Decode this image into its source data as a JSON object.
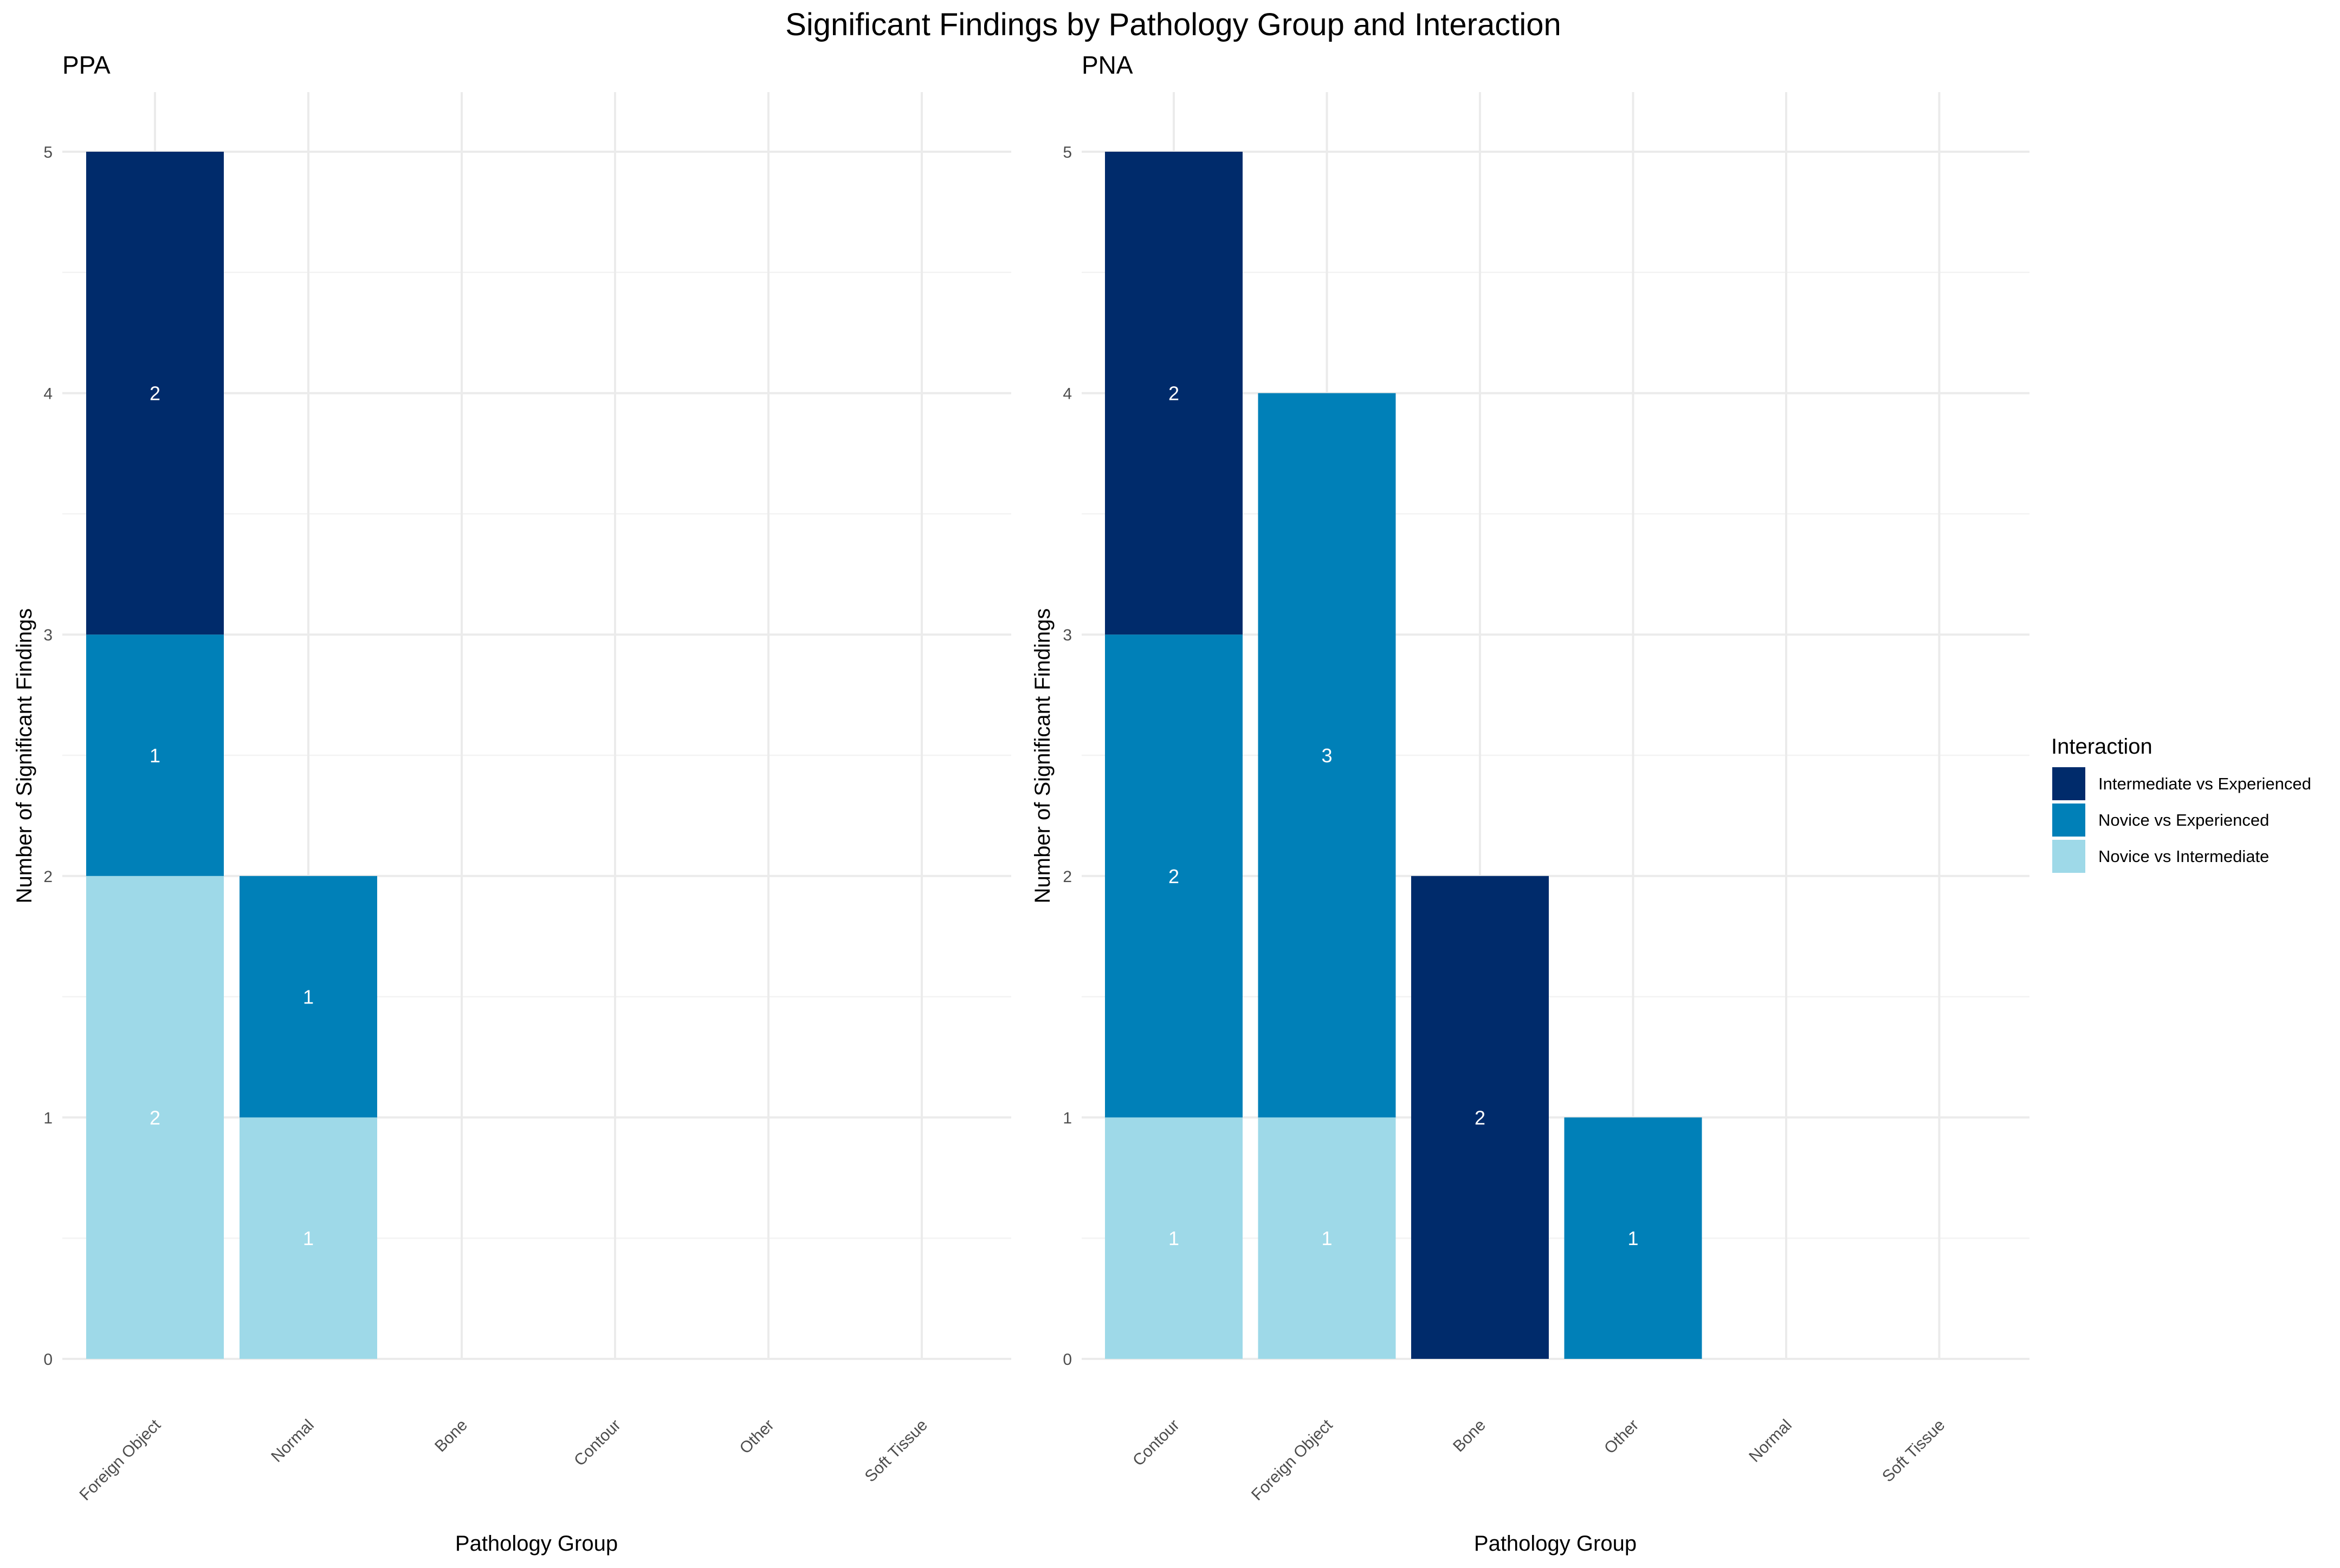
{
  "chart_data": {
    "type": "bar",
    "stacked": true,
    "title": "Significant Findings by Pathology Group and Interaction",
    "legend": {
      "title": "Interaction",
      "position": "right",
      "entries": [
        {
          "name": "Intermediate vs Experienced",
          "color": "#002b6b"
        },
        {
          "name": "Novice vs Experienced",
          "color": "#0080b8"
        },
        {
          "name": "Novice vs Intermediate",
          "color": "#9ed9e8"
        }
      ]
    },
    "panels": [
      {
        "title": "PPA",
        "xlabel": "Pathology Group",
        "ylabel": "Number of Significant Findings",
        "ylim": [
          0,
          5
        ],
        "yticks": [
          0,
          1,
          2,
          3,
          4,
          5
        ],
        "categories": [
          "Foreign Object",
          "Normal",
          "Bone",
          "Contour",
          "Other",
          "Soft Tissue"
        ],
        "series": [
          {
            "name": "Novice vs Intermediate",
            "values": [
              2,
              1,
              0,
              0,
              0,
              0
            ]
          },
          {
            "name": "Novice vs Experienced",
            "values": [
              1,
              1,
              0,
              0,
              0,
              0
            ]
          },
          {
            "name": "Intermediate vs Experienced",
            "values": [
              2,
              0,
              0,
              0,
              0,
              0
            ]
          }
        ]
      },
      {
        "title": "PNA",
        "xlabel": "Pathology Group",
        "ylabel": "Number of Significant Findings",
        "ylim": [
          0,
          5
        ],
        "yticks": [
          0,
          1,
          2,
          3,
          4,
          5
        ],
        "categories": [
          "Contour",
          "Foreign Object",
          "Bone",
          "Other",
          "Normal",
          "Soft Tissue"
        ],
        "series": [
          {
            "name": "Novice vs Intermediate",
            "values": [
              1,
              1,
              0,
              0,
              0,
              0
            ]
          },
          {
            "name": "Novice vs Experienced",
            "values": [
              2,
              3,
              0,
              1,
              0,
              0
            ]
          },
          {
            "name": "Intermediate vs Experienced",
            "values": [
              2,
              0,
              2,
              0,
              0,
              0
            ]
          }
        ]
      }
    ]
  }
}
